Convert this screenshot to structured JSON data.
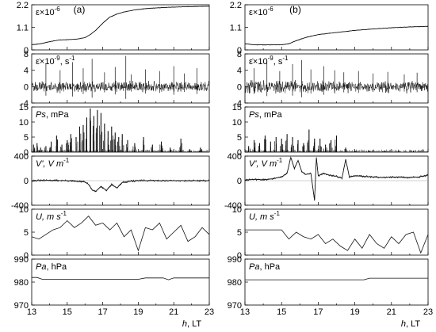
{
  "chart_data": {
    "type": "line",
    "columns": [
      {
        "label": "(a)"
      },
      {
        "label": "(b)"
      }
    ],
    "x_axis": {
      "ticks_a": [
        13,
        15,
        17,
        19,
        21,
        23
      ],
      "ticks_b": [
        13,
        15,
        17,
        19,
        21,
        23
      ],
      "tick_labels_a": [
        "13",
        "15",
        "17",
        "19",
        "21",
        "23"
      ],
      "tick_labels_b": [
        "13",
        "15",
        "17",
        "19",
        "21",
        "23"
      ],
      "range": [
        13,
        23
      ],
      "label": "h, LT"
    },
    "rows": [
      {
        "key": "strain",
        "label": "ε×10",
        "label_sup": "-6",
        "ylim": [
          0,
          2.2
        ],
        "yticks": [
          0,
          1.1,
          2.2
        ],
        "ytick_labels": [
          "0",
          "1.1",
          "2.2"
        ],
        "style": "line",
        "a": {
          "x": [
            13.0,
            13.5,
            14.0,
            14.5,
            15.0,
            15.5,
            16.0,
            16.3,
            16.6,
            17.0,
            17.4,
            17.8,
            18.2,
            18.8,
            19.5,
            20.5,
            21.5,
            22.5,
            23.0
          ],
          "y": [
            0.25,
            0.3,
            0.4,
            0.48,
            0.5,
            0.52,
            0.6,
            0.75,
            0.95,
            1.3,
            1.6,
            1.75,
            1.85,
            1.95,
            2.02,
            2.07,
            2.1,
            2.12,
            2.13
          ]
        },
        "b": {
          "x": [
            13.0,
            13.5,
            14.0,
            14.5,
            15.0,
            15.4,
            15.8,
            16.3,
            17.0,
            18.0,
            19.0,
            20.0,
            21.0,
            22.0,
            23.0
          ],
          "y": [
            0.3,
            0.25,
            0.25,
            0.25,
            0.25,
            0.3,
            0.45,
            0.6,
            0.75,
            0.85,
            0.95,
            1.02,
            1.08,
            1.12,
            1.15
          ]
        }
      },
      {
        "key": "strain_rate",
        "label": "ε̇×10",
        "label_sup": "-9",
        "label_suffix": ", s",
        "label_suffix_sup": "-1",
        "ylim": [
          -4,
          8
        ],
        "yticks": [
          -4,
          0,
          4,
          8
        ],
        "ytick_labels": [
          "-4",
          "0",
          "4",
          "8"
        ],
        "style": "noise",
        "a": {
          "center": 0,
          "amp": 1.0,
          "spikes_x": [
            13.8,
            14.6,
            15.3,
            15.9,
            16.4,
            17.1,
            17.7,
            18.3,
            18.6,
            19.4,
            20.2,
            21.0,
            21.6,
            22.3
          ],
          "spikes_y": [
            5.5,
            4.0,
            6.0,
            4.5,
            6.8,
            3.5,
            4.8,
            7.5,
            3.0,
            4.2,
            3.8,
            5.0,
            3.2,
            4.5
          ]
        },
        "b": {
          "center": 0,
          "amp": 1.1,
          "spikes_x": [
            13.5,
            14.2,
            14.9,
            15.6,
            16.1,
            16.6,
            17.3,
            17.9,
            18.4,
            19.2,
            20.0,
            20.8,
            21.7,
            22.4
          ],
          "spikes_y": [
            4.5,
            5.8,
            3.8,
            5.5,
            6.5,
            4.2,
            5.0,
            4.0,
            3.5,
            3.8,
            3.2,
            3.6,
            3.0,
            3.4
          ]
        }
      },
      {
        "key": "ps",
        "label": "Ps",
        "label_suffix": ", mPa",
        "ylim": [
          0,
          15
        ],
        "yticks": [
          0,
          5,
          10,
          15
        ],
        "ytick_labels": [
          "0",
          "5",
          "10",
          "15"
        ],
        "style": "bars",
        "a": {
          "x": [
            13.1,
            13.3,
            13.5,
            13.8,
            14.1,
            14.4,
            14.7,
            15.0,
            15.2,
            15.5,
            15.7,
            15.9,
            16.1,
            16.3,
            16.5,
            16.7,
            16.9,
            17.1,
            17.3,
            17.5,
            17.7,
            17.9,
            18.1,
            18.4,
            18.8,
            19.3,
            19.8,
            20.3,
            20.8,
            21.4,
            21.9,
            22.5
          ],
          "y": [
            2.5,
            3.0,
            1.5,
            2.0,
            3.5,
            5.5,
            2.5,
            4.0,
            6.0,
            5.0,
            8.5,
            9.0,
            11.5,
            14.5,
            12.0,
            14.0,
            13.0,
            9.5,
            7.0,
            8.5,
            6.5,
            5.0,
            6.0,
            4.0,
            3.0,
            5.0,
            2.5,
            3.5,
            1.5,
            4.5,
            1.0,
            1.5
          ]
        },
        "b": {
          "x": [
            13.2,
            13.5,
            13.8,
            14.1,
            14.4,
            14.7,
            15.0,
            15.3,
            15.6,
            15.9,
            16.2,
            16.5,
            16.8,
            17.1,
            17.4,
            17.7,
            18.0,
            18.5,
            19.0,
            19.8,
            20.6,
            21.4,
            22.2
          ],
          "y": [
            2.0,
            4.0,
            3.0,
            5.5,
            3.5,
            5.0,
            4.5,
            6.0,
            5.0,
            4.0,
            3.0,
            7.5,
            4.5,
            4.5,
            2.5,
            4.0,
            5.5,
            1.5,
            0.5,
            0.5,
            0.5,
            0.5,
            0.5
          ]
        }
      },
      {
        "key": "v_prime",
        "label": "V', V m",
        "label_sup": "-1",
        "ylim": [
          -400,
          400
        ],
        "yticks": [
          -400,
          0,
          400
        ],
        "ytick_labels": [
          "-400",
          "0",
          "400"
        ],
        "style": "line",
        "a": {
          "x": [
            13.0,
            14.0,
            15.0,
            15.5,
            16.0,
            16.2,
            16.4,
            16.6,
            16.9,
            17.2,
            17.5,
            17.8,
            18.1,
            18.5,
            19.0,
            20.0,
            21.0,
            22.0,
            23.0
          ],
          "y": [
            0,
            5,
            0,
            -10,
            -20,
            -60,
            -150,
            -180,
            -90,
            -160,
            -60,
            -120,
            -30,
            -10,
            0,
            0,
            0,
            0,
            0
          ]
        },
        "b": {
          "x": [
            13.0,
            13.5,
            14.0,
            14.5,
            15.0,
            15.3,
            15.5,
            15.7,
            15.9,
            16.1,
            16.3,
            16.6,
            16.8,
            16.9,
            17.0,
            17.3,
            17.6,
            18.0,
            18.3,
            18.5,
            18.7,
            19.0,
            19.5,
            20.0,
            20.5,
            21.0,
            21.5,
            22.0,
            22.5,
            23.0
          ],
          "y": [
            10,
            20,
            15,
            30,
            60,
            120,
            380,
            200,
            330,
            150,
            100,
            120,
            -320,
            380,
            80,
            120,
            90,
            70,
            40,
            350,
            60,
            80,
            70,
            60,
            50,
            60,
            55,
            50,
            60,
            90
          ]
        }
      },
      {
        "key": "u",
        "label": "U, m s",
        "label_sup": "-1",
        "ylim": [
          0,
          10
        ],
        "yticks": [
          0,
          5,
          10
        ],
        "ytick_labels": [
          "0",
          "5",
          "10"
        ],
        "style": "line",
        "a": {
          "x": [
            13.0,
            13.4,
            13.8,
            14.2,
            14.6,
            15.0,
            15.4,
            15.8,
            16.2,
            16.6,
            17.0,
            17.4,
            17.8,
            18.2,
            18.6,
            19.0,
            19.4,
            19.8,
            20.2,
            20.6,
            21.0,
            21.4,
            21.8,
            22.2,
            22.6,
            23.0
          ],
          "y": [
            4.0,
            3.5,
            4.5,
            5.5,
            6.0,
            7.5,
            6.0,
            7.0,
            8.5,
            6.5,
            7.0,
            5.5,
            7.0,
            4.0,
            5.5,
            1.0,
            6.0,
            5.5,
            7.0,
            3.5,
            5.0,
            6.5,
            3.0,
            4.0,
            6.0,
            4.5
          ]
        },
        "b": {
          "x": [
            13.0,
            13.5,
            14.0,
            14.5,
            15.0,
            15.4,
            15.8,
            16.2,
            16.6,
            17.0,
            17.4,
            17.8,
            18.2,
            18.6,
            19.0,
            19.4,
            19.8,
            20.2,
            20.6,
            21.0,
            21.4,
            21.8,
            22.2,
            22.6,
            23.0
          ],
          "y": [
            5.5,
            5.5,
            5.5,
            5.5,
            5.5,
            3.5,
            5.0,
            4.0,
            3.5,
            4.5,
            2.5,
            3.5,
            2.0,
            1.0,
            3.5,
            1.5,
            4.5,
            2.5,
            1.5,
            4.0,
            2.5,
            4.5,
            5.0,
            0.5,
            4.5
          ]
        }
      },
      {
        "key": "pa",
        "label": "Pa",
        "label_suffix": ", hPa",
        "ylim": [
          970,
          990
        ],
        "yticks": [
          970,
          980,
          990
        ],
        "ytick_labels": [
          "970",
          "980",
          "990"
        ],
        "style": "line",
        "a": {
          "x": [
            13.0,
            13.3,
            13.6,
            19.0,
            19.4,
            20.4,
            20.7,
            21.0,
            23.0
          ],
          "y": [
            982.0,
            982.0,
            981.2,
            981.2,
            981.8,
            981.8,
            981.0,
            981.8,
            981.8
          ]
        },
        "b": {
          "x": [
            13.0,
            19.5,
            19.8,
            23.0
          ],
          "y": [
            981.0,
            981.0,
            981.7,
            981.7
          ]
        }
      }
    ]
  }
}
